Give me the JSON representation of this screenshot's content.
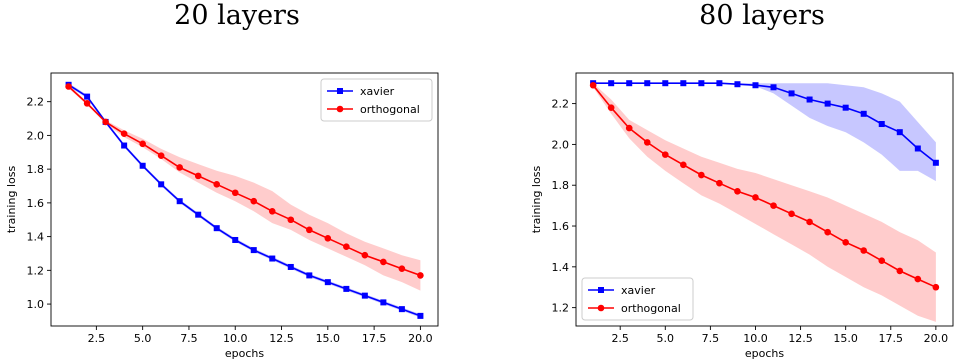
{
  "chart_data": [
    {
      "type": "line",
      "title": "20 layers",
      "xlabel": "epochs",
      "ylabel": "training loss",
      "xlim": [
        0.05,
        20.95
      ],
      "ylim": [
        0.87,
        2.37
      ],
      "xticks": [
        2.5,
        5.0,
        7.5,
        10.0,
        12.5,
        15.0,
        17.5,
        20.0
      ],
      "xtick_labels": [
        "2.5",
        "5.0",
        "7.5",
        "10.0",
        "12.5",
        "15.0",
        "17.5",
        "20.0"
      ],
      "yticks": [
        1.0,
        1.2,
        1.4,
        1.6,
        1.8,
        2.0,
        2.2
      ],
      "ytick_labels": [
        "1.0",
        "1.2",
        "1.4",
        "1.6",
        "1.8",
        "2.0",
        "2.2"
      ],
      "legend_position": "top-right",
      "x": [
        1,
        2,
        3,
        4,
        5,
        6,
        7,
        8,
        9,
        10,
        11,
        12,
        13,
        14,
        15,
        16,
        17,
        18,
        19,
        20
      ],
      "series": [
        {
          "name": "xavier",
          "color": "#0000ff",
          "marker": "square",
          "values": [
            2.3,
            2.23,
            2.08,
            1.94,
            1.82,
            1.71,
            1.61,
            1.53,
            1.45,
            1.38,
            1.32,
            1.27,
            1.22,
            1.17,
            1.13,
            1.09,
            1.05,
            1.01,
            0.97,
            0.93
          ],
          "lower": [
            2.29,
            2.22,
            2.07,
            1.93,
            1.81,
            1.7,
            1.6,
            1.52,
            1.44,
            1.37,
            1.31,
            1.26,
            1.21,
            1.16,
            1.12,
            1.08,
            1.04,
            1.0,
            0.96,
            0.92
          ],
          "upper": [
            2.31,
            2.24,
            2.09,
            1.95,
            1.83,
            1.72,
            1.62,
            1.54,
            1.46,
            1.39,
            1.33,
            1.28,
            1.23,
            1.18,
            1.14,
            1.1,
            1.06,
            1.02,
            0.98,
            0.94
          ]
        },
        {
          "name": "orthogonal",
          "color": "#ff0000",
          "marker": "circle",
          "values": [
            2.29,
            2.19,
            2.08,
            2.01,
            1.95,
            1.88,
            1.81,
            1.76,
            1.71,
            1.66,
            1.61,
            1.55,
            1.5,
            1.44,
            1.39,
            1.34,
            1.29,
            1.25,
            1.21,
            1.17
          ],
          "lower": [
            2.28,
            2.18,
            2.07,
            1.99,
            1.93,
            1.86,
            1.78,
            1.72,
            1.66,
            1.61,
            1.55,
            1.48,
            1.44,
            1.38,
            1.33,
            1.28,
            1.23,
            1.17,
            1.13,
            1.08
          ],
          "upper": [
            2.3,
            2.2,
            2.09,
            2.03,
            1.98,
            1.92,
            1.87,
            1.83,
            1.79,
            1.76,
            1.72,
            1.67,
            1.59,
            1.53,
            1.48,
            1.42,
            1.37,
            1.33,
            1.29,
            1.26
          ]
        }
      ]
    },
    {
      "type": "line",
      "title": "80 layers",
      "xlabel": "epochs",
      "ylabel": "training loss",
      "xlim": [
        0.05,
        20.95
      ],
      "ylim": [
        1.11,
        2.35
      ],
      "xticks": [
        2.5,
        5.0,
        7.5,
        10.0,
        12.5,
        15.0,
        17.5,
        20.0
      ],
      "xtick_labels": [
        "2.5",
        "5.0",
        "7.5",
        "10.0",
        "12.5",
        "15.0",
        "17.5",
        "20.0"
      ],
      "yticks": [
        1.2,
        1.4,
        1.6,
        1.8,
        2.0,
        2.2
      ],
      "ytick_labels": [
        "1.2",
        "1.4",
        "1.6",
        "1.8",
        "2.0",
        "2.2"
      ],
      "legend_position": "bottom-left",
      "x": [
        1,
        2,
        3,
        4,
        5,
        6,
        7,
        8,
        9,
        10,
        11,
        12,
        13,
        14,
        15,
        16,
        17,
        18,
        19,
        20
      ],
      "series": [
        {
          "name": "xavier",
          "color": "#0000ff",
          "marker": "square",
          "values": [
            2.3,
            2.3,
            2.3,
            2.3,
            2.3,
            2.3,
            2.3,
            2.3,
            2.295,
            2.29,
            2.28,
            2.25,
            2.22,
            2.2,
            2.18,
            2.15,
            2.1,
            2.06,
            1.98,
            1.91
          ],
          "lower": [
            2.3,
            2.3,
            2.3,
            2.3,
            2.3,
            2.3,
            2.3,
            2.3,
            2.295,
            2.285,
            2.25,
            2.19,
            2.13,
            2.09,
            2.06,
            2.01,
            1.95,
            1.87,
            1.87,
            1.82
          ],
          "upper": [
            2.3,
            2.3,
            2.3,
            2.3,
            2.3,
            2.3,
            2.3,
            2.3,
            2.3,
            2.3,
            2.3,
            2.3,
            2.3,
            2.3,
            2.29,
            2.28,
            2.25,
            2.21,
            2.11,
            2.01
          ]
        },
        {
          "name": "orthogonal",
          "color": "#ff0000",
          "marker": "circle",
          "values": [
            2.29,
            2.18,
            2.08,
            2.01,
            1.95,
            1.9,
            1.85,
            1.81,
            1.77,
            1.74,
            1.7,
            1.66,
            1.62,
            1.57,
            1.52,
            1.48,
            1.43,
            1.38,
            1.34,
            1.3
          ],
          "lower": [
            2.28,
            2.15,
            2.03,
            1.94,
            1.87,
            1.81,
            1.75,
            1.71,
            1.66,
            1.61,
            1.56,
            1.51,
            1.46,
            1.4,
            1.35,
            1.3,
            1.26,
            1.21,
            1.16,
            1.13
          ],
          "upper": [
            2.3,
            2.22,
            2.12,
            2.07,
            2.02,
            1.98,
            1.94,
            1.91,
            1.88,
            1.86,
            1.83,
            1.8,
            1.77,
            1.74,
            1.7,
            1.66,
            1.62,
            1.57,
            1.53,
            1.47
          ]
        }
      ]
    }
  ]
}
